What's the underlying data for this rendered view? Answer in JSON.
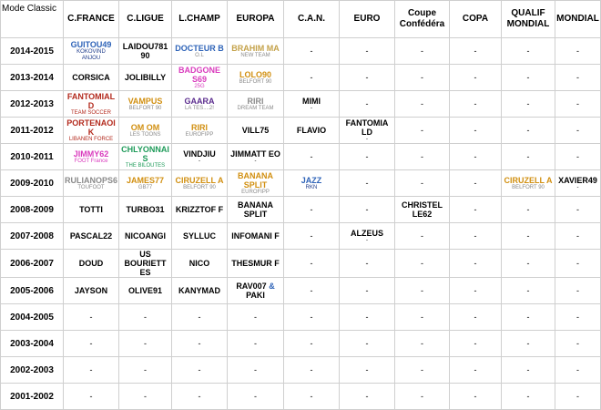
{
  "headers": [
    "Mode Classic",
    "C.FRANCE",
    "C.LIGUE",
    "L.CHAMP",
    "EUROPA",
    "C.A.N.",
    "EURO",
    "Coupe Confédéra",
    "COPA",
    "QUALIF MONDIAL",
    "MONDIAL"
  ],
  "rows": [
    {
      "season": "2014-2015",
      "cells": [
        {
          "main": "GUITOU49",
          "sub": "KOKOVIND",
          "sub2": "ANJOU",
          "color": "blu",
          "sub_color": "nav"
        },
        {
          "main": "LAIDOU781 90",
          "color": "blk"
        },
        {
          "main": "DOCTEUR B",
          "sub": "O.L",
          "color": "blu",
          "sub_color": "gry"
        },
        {
          "main": "BRAHIM MA",
          "sub": "NEW TEAM",
          "color": "tan",
          "sub_color": "gry"
        },
        {
          "dash": "-"
        },
        {
          "dash": "-"
        },
        {
          "dash": "-"
        },
        {
          "dash": "-"
        },
        {
          "dash": "-"
        },
        {
          "dash": "-"
        }
      ]
    },
    {
      "season": "2013-2014",
      "cells": [
        {
          "main": "CORSICA",
          "color": "blk"
        },
        {
          "main": "JOLIBILLY",
          "color": "blk"
        },
        {
          "main": "BADGONE S69",
          "sub": "25G",
          "color": "mag",
          "sub_color": "mag"
        },
        {
          "main": "LOLO90",
          "sub": "BELFORT 90",
          "color": "amb",
          "sub_color": "gry"
        },
        {
          "dash": "-"
        },
        {
          "dash": "-"
        },
        {
          "dash": "-"
        },
        {
          "dash": "-"
        },
        {
          "dash": "-"
        },
        {
          "dash": "-"
        }
      ]
    },
    {
      "season": "2012-2013",
      "cells": [
        {
          "main": "FANTOMIALD",
          "sub": "TEAM SOCCER",
          "color": "red",
          "sub_color": "red"
        },
        {
          "main": "VAMPUS",
          "sub": "BELFORT 90",
          "color": "amb",
          "sub_color": "gry"
        },
        {
          "main": "GAARA",
          "sub": "LA TES....2!",
          "color": "purp",
          "sub_color": "gry"
        },
        {
          "main": "RIRI",
          "sub": "DREAM TEAM",
          "color": "gry",
          "sub_color": "gry"
        },
        {
          "main": "MIMI",
          "sub": "-",
          "color": "blk",
          "sub_color": "blk"
        },
        {
          "dash": "-"
        },
        {
          "dash": "-"
        },
        {
          "dash": "-"
        },
        {
          "dash": "-"
        },
        {
          "dash": "-"
        }
      ]
    },
    {
      "season": "2011-2012",
      "cells": [
        {
          "main": "PORTENAOIK",
          "sub": "LIBANEN FORCE",
          "color": "red",
          "sub_color": "red"
        },
        {
          "main": "OM OM",
          "sub": "LES TOONS",
          "color": "amb",
          "sub_color": "gry"
        },
        {
          "main": "RIRI",
          "sub": "EUROFIPP",
          "color": "amb",
          "sub_color": "gry"
        },
        {
          "main": "VILL75",
          "color": "blk"
        },
        {
          "main": "FLAVIO",
          "color": "blk"
        },
        {
          "main": "FANTOMIA LD",
          "sub": "-",
          "color": "blk",
          "sub_color": "blk"
        },
        {
          "dash": "-"
        },
        {
          "dash": "-"
        },
        {
          "dash": "-"
        },
        {
          "dash": "-"
        }
      ]
    },
    {
      "season": "2010-2011",
      "cells": [
        {
          "main": "JIMMY62",
          "sub": "FOOT France",
          "color": "mag",
          "sub_color": "mag"
        },
        {
          "main": "CHLYONNAIS",
          "sub": "THE BILOUTES",
          "color": "grn",
          "sub_color": "grn"
        },
        {
          "main": "VINDJIU",
          "sub": "-",
          "color": "blk",
          "sub_color": "blk"
        },
        {
          "main": "JIMMATT EO",
          "sub": "-",
          "color": "blk",
          "sub_color": "blk"
        },
        {
          "dash": "-"
        },
        {
          "dash": "-"
        },
        {
          "dash": "-"
        },
        {
          "dash": "-"
        },
        {
          "dash": "-"
        },
        {
          "dash": "-"
        }
      ]
    },
    {
      "season": "2009-2010",
      "cells": [
        {
          "main": "RULIANOPS6",
          "sub": "TOUFOOT",
          "color": "gry",
          "sub_color": "gry"
        },
        {
          "main": "JAMES77",
          "sub": "GB77",
          "color": "amb",
          "sub_color": "gry"
        },
        {
          "main": "CIRUZELL A",
          "sub": "BELFORT 90",
          "color": "amb",
          "sub_color": "gry"
        },
        {
          "main": "BANANA SPLIT",
          "sub": "EUROFIPP",
          "color": "amb",
          "sub_color": "gry"
        },
        {
          "main": "JAZZ",
          "sub": "RKN",
          "color": "blu",
          "sub_color": "nav"
        },
        {
          "dash": "-"
        },
        {
          "dash": "-"
        },
        {
          "dash": "-"
        },
        {
          "main": "CIRUZELL A",
          "sub": "BELFORT 90",
          "color": "amb",
          "sub_color": "gry"
        },
        {
          "main": "XAVIER49",
          "sub": "-",
          "color": "blk",
          "sub_color": "blk"
        }
      ]
    },
    {
      "season": "2008-2009",
      "cells": [
        {
          "main": "TOTTI",
          "color": "blk"
        },
        {
          "main": "TURBO31",
          "color": "blk"
        },
        {
          "main": "KRIZZTOF F",
          "color": "blk"
        },
        {
          "main": "BANANA SPLIT",
          "color": "blk"
        },
        {
          "dash": "-"
        },
        {
          "dash": "-"
        },
        {
          "main": "CHRISTEL LE62",
          "color": "blk"
        },
        {
          "dash": "-"
        },
        {
          "dash": "-"
        },
        {
          "dash": "-"
        }
      ]
    },
    {
      "season": "2007-2008",
      "cells": [
        {
          "main": "PASCAL22",
          "color": "blk"
        },
        {
          "main": "NICOANGI",
          "color": "blk"
        },
        {
          "main": "SYLLUC",
          "color": "blk"
        },
        {
          "main": "INFOMANI F",
          "color": "blk"
        },
        {
          "dash": "-"
        },
        {
          "main": "ALZEUS",
          "sub": "-",
          "color": "blk",
          "sub_color": "blk"
        },
        {
          "dash": "-"
        },
        {
          "dash": "-"
        },
        {
          "dash": "-"
        },
        {
          "dash": "-"
        }
      ]
    },
    {
      "season": "2006-2007",
      "cells": [
        {
          "main": "DOUD",
          "color": "blk"
        },
        {
          "main": "US BOURIETT ES",
          "color": "blk"
        },
        {
          "main": "NICO",
          "color": "blk"
        },
        {
          "main": "THESMUR F",
          "color": "blk"
        },
        {
          "dash": "-"
        },
        {
          "dash": "-"
        },
        {
          "dash": "-"
        },
        {
          "dash": "-"
        },
        {
          "dash": "-"
        },
        {
          "dash": "-"
        }
      ]
    },
    {
      "season": "2005-2006",
      "cells": [
        {
          "main": "JAYSON",
          "color": "blk"
        },
        {
          "main": "OLIVE91",
          "color": "blk"
        },
        {
          "main": "KANYMAD",
          "color": "blk"
        },
        {
          "main": "RAV007",
          "amp": "&",
          "main2": "PAKI",
          "color": "blk"
        },
        {
          "dash": "-"
        },
        {
          "dash": "-"
        },
        {
          "dash": "-"
        },
        {
          "dash": "-"
        },
        {
          "dash": "-"
        },
        {
          "dash": "-"
        }
      ]
    },
    {
      "season": "2004-2005",
      "cells": [
        {
          "dash": "-"
        },
        {
          "dash": "-"
        },
        {
          "dash": "-"
        },
        {
          "dash": "-"
        },
        {
          "dash": "-"
        },
        {
          "dash": "-"
        },
        {
          "dash": "-"
        },
        {
          "dash": "-"
        },
        {
          "dash": "-"
        },
        {
          "dash": "-"
        }
      ]
    },
    {
      "season": "2003-2004",
      "cells": [
        {
          "dash": "-"
        },
        {
          "dash": "-"
        },
        {
          "dash": "-"
        },
        {
          "dash": "-"
        },
        {
          "dash": "-"
        },
        {
          "dash": "-"
        },
        {
          "dash": "-"
        },
        {
          "dash": "-"
        },
        {
          "dash": "-"
        },
        {
          "dash": "-"
        }
      ]
    },
    {
      "season": "2002-2003",
      "cells": [
        {
          "dash": "-"
        },
        {
          "dash": "-"
        },
        {
          "dash": "-"
        },
        {
          "dash": "-"
        },
        {
          "dash": "-"
        },
        {
          "dash": "-"
        },
        {
          "dash": "-"
        },
        {
          "dash": "-"
        },
        {
          "dash": "-"
        },
        {
          "dash": "-"
        }
      ]
    },
    {
      "season": "2001-2002",
      "cells": [
        {
          "dash": "-"
        },
        {
          "dash": "-"
        },
        {
          "dash": "-"
        },
        {
          "dash": "-"
        },
        {
          "dash": "-"
        },
        {
          "dash": "-"
        },
        {
          "dash": "-"
        },
        {
          "dash": "-"
        },
        {
          "dash": "-"
        },
        {
          "dash": "-"
        }
      ]
    }
  ]
}
